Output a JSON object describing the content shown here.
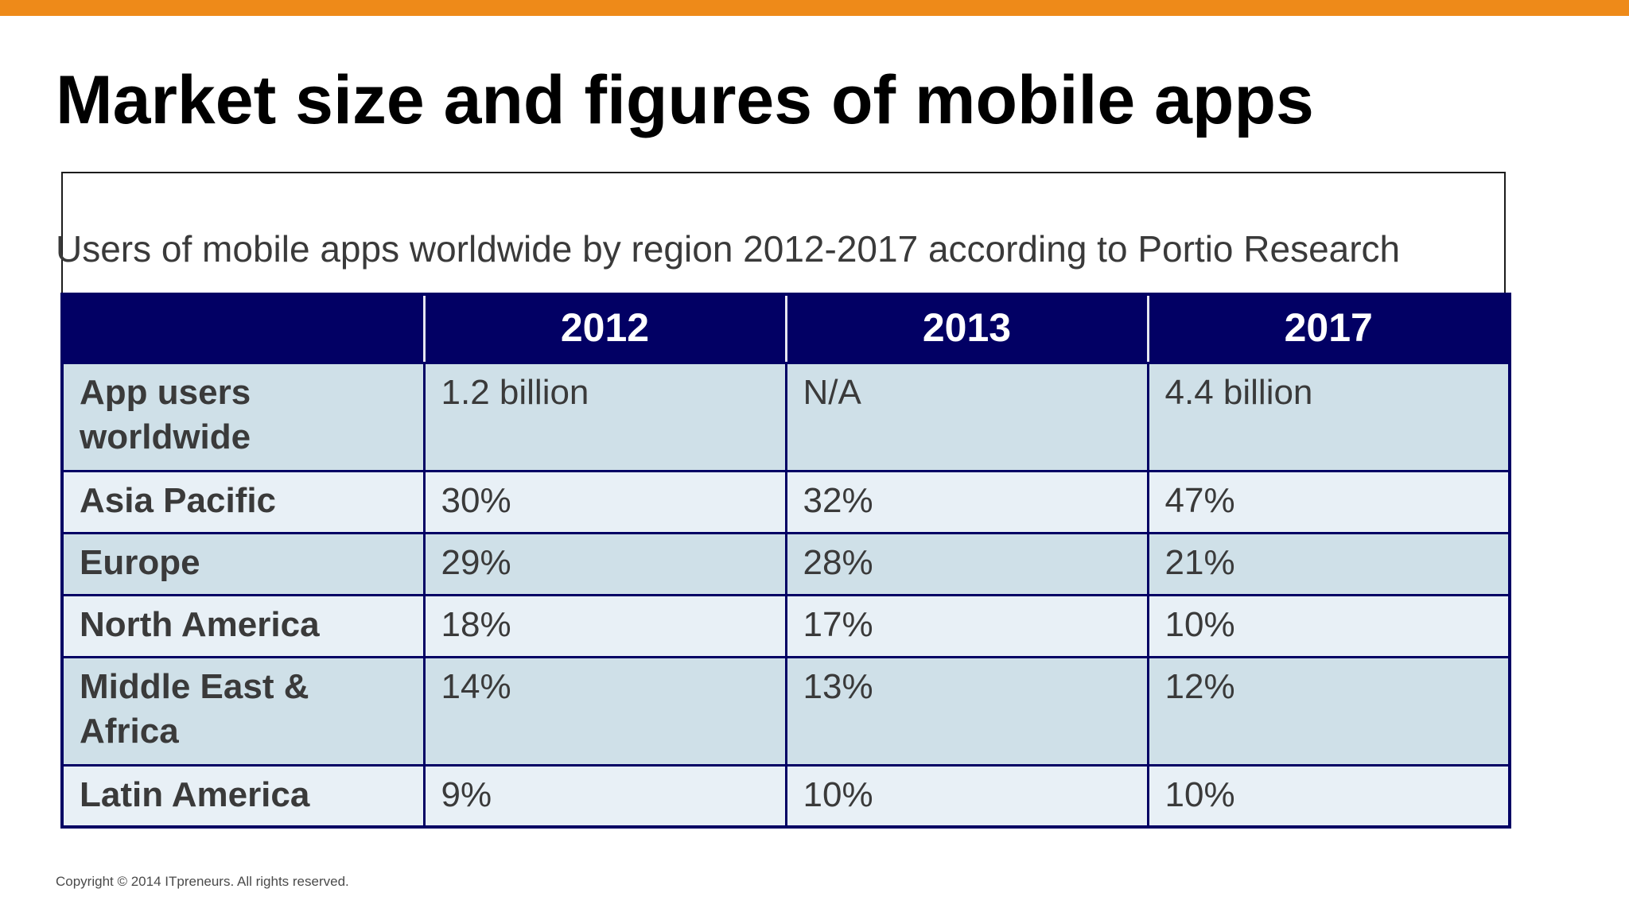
{
  "slide": {
    "title": "Market size and figures of mobile apps",
    "accent_color": "#ee8a19",
    "copyright": "Copyright © 2014 ITpreneurs. All rights reserved."
  },
  "table": {
    "caption": "Users of mobile apps worldwide by region 2012-2017 according to Portio Research",
    "header_color": "#020064",
    "columns": [
      "",
      "2012",
      "2013",
      "2017"
    ],
    "rows": [
      {
        "label": "App users worldwide",
        "values": [
          "1.2 billion",
          "N/A",
          "4.4 billion"
        ]
      },
      {
        "label": "Asia Pacific",
        "values": [
          "30%",
          "32%",
          "47%"
        ]
      },
      {
        "label": "Europe",
        "values": [
          "29%",
          "28%",
          "21%"
        ]
      },
      {
        "label": "North America",
        "values": [
          "18%",
          "17%",
          "10%"
        ]
      },
      {
        "label": "Middle East & Africa",
        "values": [
          "14%",
          "13%",
          "12%"
        ]
      },
      {
        "label": "Latin America",
        "values": [
          "9%",
          "10%",
          "10%"
        ]
      }
    ]
  }
}
